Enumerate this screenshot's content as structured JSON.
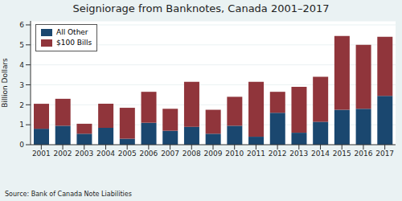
{
  "chart_data": {
    "type": "bar",
    "title": "Seigniorage from Banknotes, Canada 2001–2017",
    "y_label": "Billion Dollars",
    "source": "Source: Bank of Canada Note Liabilities",
    "categories": [
      "2001",
      "2002",
      "2003",
      "2004",
      "2005",
      "2006",
      "2007",
      "2008",
      "2009",
      "2010",
      "2011",
      "2012",
      "2013",
      "2014",
      "2015",
      "2016",
      "2017"
    ],
    "series": [
      {
        "name": "All Other",
        "color": "#1a476f",
        "values": [
          0.8,
          0.95,
          0.55,
          0.85,
          0.3,
          1.1,
          0.7,
          0.9,
          0.55,
          0.95,
          0.4,
          1.6,
          0.6,
          1.15,
          1.75,
          1.8,
          2.45
        ]
      },
      {
        "name": "$100 Bills",
        "color": "#90353b",
        "values": [
          1.25,
          1.35,
          0.5,
          1.2,
          1.55,
          1.55,
          1.1,
          2.25,
          1.2,
          1.45,
          2.75,
          1.05,
          2.3,
          2.25,
          3.7,
          3.2,
          2.95
        ]
      }
    ],
    "stacked": true,
    "ylim": [
      0,
      6.2
    ],
    "yticks": [
      0,
      1,
      2,
      3,
      4,
      5,
      6
    ],
    "grid": true,
    "legend": "top-left"
  }
}
